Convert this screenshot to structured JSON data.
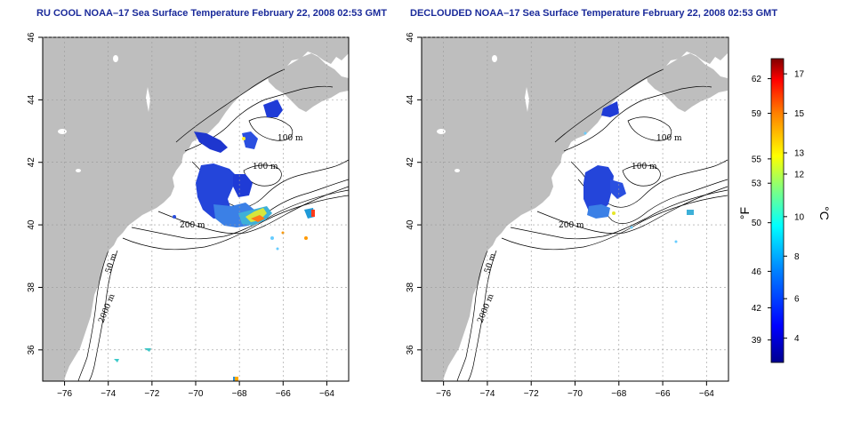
{
  "panels": [
    {
      "title": "RU COOL NOAA–17 Sea Surface Temperature February 22, 2008 02:53 GMT"
    },
    {
      "title": "DECLOUDED NOAA–17 Sea Surface Temperature February 22, 2008 02:53 GMT"
    }
  ],
  "axes": {
    "x_ticks": [
      "−76",
      "−74",
      "−72",
      "−70",
      "−68",
      "−66",
      "−64"
    ],
    "y_ticks": [
      "46",
      "44",
      "42",
      "40",
      "38",
      "36"
    ],
    "lon_range": [
      -77.0,
      -63.0
    ],
    "lat_range": [
      35.0,
      46.0
    ],
    "grid": "dotted"
  },
  "contour_labels": {
    "m100a": "100 m",
    "m100b": "100 m",
    "m200": "200 m",
    "m50": "50 m",
    "m2000": "2000 m"
  },
  "colorbar": {
    "fahrenheit_ticks": [
      "62",
      "59",
      "55",
      "53",
      "50",
      "46",
      "42",
      "39"
    ],
    "celsius_ticks": [
      "17",
      "15",
      "13",
      "12",
      "10",
      "8",
      "6",
      "4"
    ],
    "fahrenheit_unit": "°F",
    "celsius_unit": "°C",
    "colors": [
      "#00008f",
      "#0000ff",
      "#0080ff",
      "#00ffff",
      "#80ff80",
      "#ffff00",
      "#ff8000",
      "#ff0000",
      "#800000"
    ]
  },
  "colors": {
    "land": "#bebebe",
    "ocean": "#ffffff",
    "sst_cold": "#1f3bd6",
    "sst_mid": "#3d8fe8",
    "sst_warm": "#e6e628"
  }
}
